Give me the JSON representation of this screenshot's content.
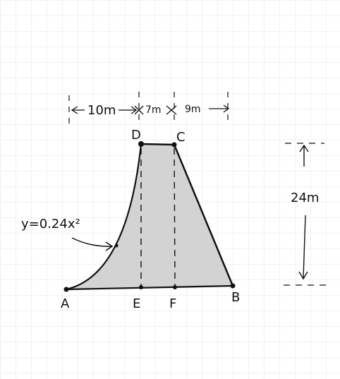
{
  "colors": {
    "grid": "#e6e6e6",
    "ink": "#111111",
    "fill": "#d3d3d3"
  },
  "dimensions": {
    "ad": "10m",
    "dc": "7m",
    "cb": "9m",
    "height": "24m"
  },
  "equation": "y=0.24x²",
  "points": {
    "a": "A",
    "b": "B",
    "c": "C",
    "d": "D",
    "e": "E",
    "f": "F"
  }
}
